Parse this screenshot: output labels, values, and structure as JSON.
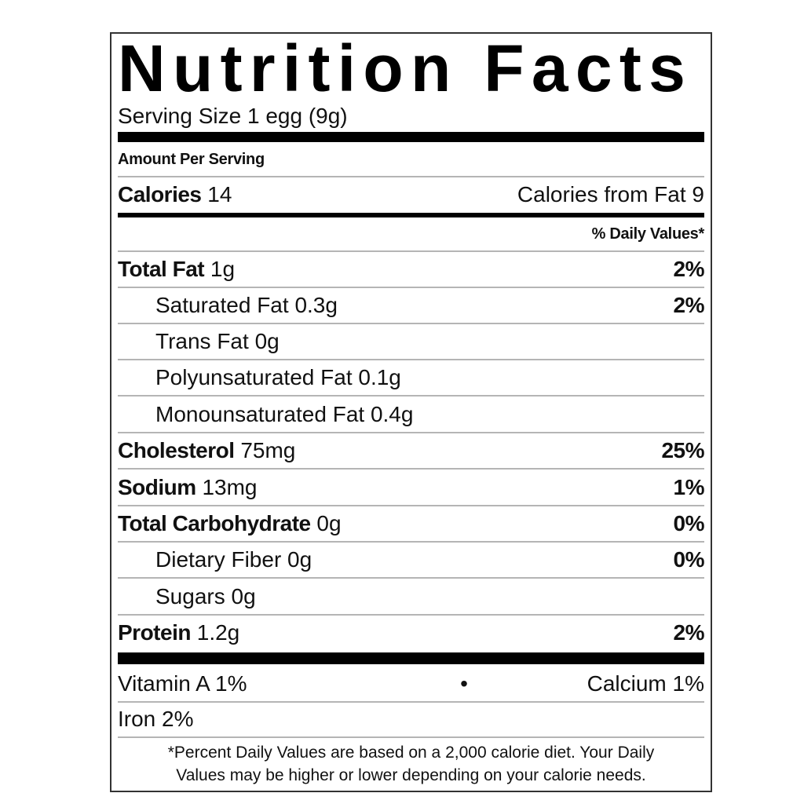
{
  "title": "Nutrition Facts",
  "serving_size": "Serving Size 1 egg  (9g)",
  "amount_per_serving": "Amount Per Serving",
  "calories": {
    "label": "Calories",
    "value": "14",
    "from_fat": "Calories from Fat 9"
  },
  "daily_values_header": "% Daily Values*",
  "nutrients": [
    {
      "label": "Total Fat",
      "amount": "1g",
      "dv": "2%",
      "bold": true
    },
    {
      "label": "Saturated Fat",
      "amount": "0.3g",
      "dv": "2%",
      "bold": false
    },
    {
      "label": "Trans Fat",
      "amount": "0g",
      "dv": "",
      "bold": false
    },
    {
      "label": "Polyunsaturated Fat",
      "amount": "0.1g",
      "dv": "",
      "bold": false
    },
    {
      "label": "Monounsaturated Fat",
      "amount": "0.4g",
      "dv": "",
      "bold": false
    },
    {
      "label": "Cholesterol",
      "amount": "75mg",
      "dv": "25%",
      "bold": true
    },
    {
      "label": "Sodium",
      "amount": "13mg",
      "dv": "1%",
      "bold": true
    },
    {
      "label": "Total Carbohydrate",
      "amount": "0g",
      "dv": "0%",
      "bold": true
    },
    {
      "label": "Dietary Fiber",
      "amount": "0g",
      "dv": "0%",
      "bold": false
    },
    {
      "label": "Sugars",
      "amount": "0g",
      "dv": "",
      "bold": false
    },
    {
      "label": "Protein",
      "amount": "1.2g",
      "dv": "2%",
      "bold": true
    }
  ],
  "vitamins": {
    "vitamin_a": "Vitamin A 1%",
    "separator": "•",
    "calcium": "Calcium 1%",
    "iron": "Iron 2%"
  },
  "footnote": {
    "line1": "*Percent Daily Values are based on a 2,000 calorie diet. Your Daily",
    "line2": "Values may be higher or lower depending on your calorie needs."
  }
}
